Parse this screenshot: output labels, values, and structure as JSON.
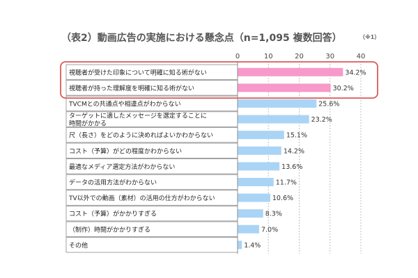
{
  "chart_data": {
    "type": "bar",
    "orientation": "horizontal",
    "title": "（表2）動画広告の実施における懸念点（n=1,095 複数回答）",
    "footnote": "（※1）",
    "categories": [
      "視聴者が受けた印象について明確に知る術がない",
      "視聴者が持った理解度を明確に知る術がない",
      "TVCMとの共通点や相違点がわからない",
      "ターゲットに適したメッセージを選定することに時間がかかる",
      "尺（長さ）をどのように決めればよいかわからない",
      "コスト（予算）がどの程度かわからない",
      "最適なメディア選定方法がわからない",
      "データの活用方法がわからない",
      "TV以外での動画（素材）の活用の仕方がわからない",
      "コスト（予算）がかかりすぎる",
      "（制作）時間がかかりすぎる",
      "その他"
    ],
    "category_lines": [
      [
        "視聴者が受けた印象について明確に知る術がない"
      ],
      [
        "視聴者が持った理解度を明確に知る術がない"
      ],
      [
        "TVCMとの共通点や相違点がわからない"
      ],
      [
        "ターゲットに適したメッセージを選定することに",
        "時間がかかる"
      ],
      [
        "尺（長さ）をどのように決めればよいかわからない"
      ],
      [
        "コスト（予算）がどの程度かわからない"
      ],
      [
        "最適なメディア選定方法がわからない"
      ],
      [
        "データの活用方法がわからない"
      ],
      [
        "TV以外での動画（素材）の活用の仕方がわからない"
      ],
      [
        "コスト（予算）がかかりすぎる"
      ],
      [
        "（制作）時間がかかりすぎる"
      ],
      [
        "その他"
      ]
    ],
    "values": [
      34.2,
      30.2,
      25.6,
      23.2,
      15.1,
      14.2,
      13.6,
      11.7,
      10.6,
      8.3,
      7.0,
      1.4
    ],
    "value_labels": [
      "34.2%",
      "30.2%",
      "25.6%",
      "23.2%",
      "15.1%",
      "14.2%",
      "13.6%",
      "11.7%",
      "10.6%",
      "8.3%",
      "7.0%",
      "1.4%"
    ],
    "highlighted": [
      true,
      true,
      false,
      false,
      false,
      false,
      false,
      false,
      false,
      false,
      false,
      false
    ],
    "xlim": [
      0,
      40
    ],
    "xticks": [
      "0",
      "10",
      "20",
      "30",
      "40"
    ],
    "colors": {
      "highlight_bar": "#f799c9",
      "bar": "#aad4f5",
      "highlight_box": "#d95a5a",
      "grid": "#bfbfbf",
      "label_border": "#8c8c8c"
    }
  }
}
